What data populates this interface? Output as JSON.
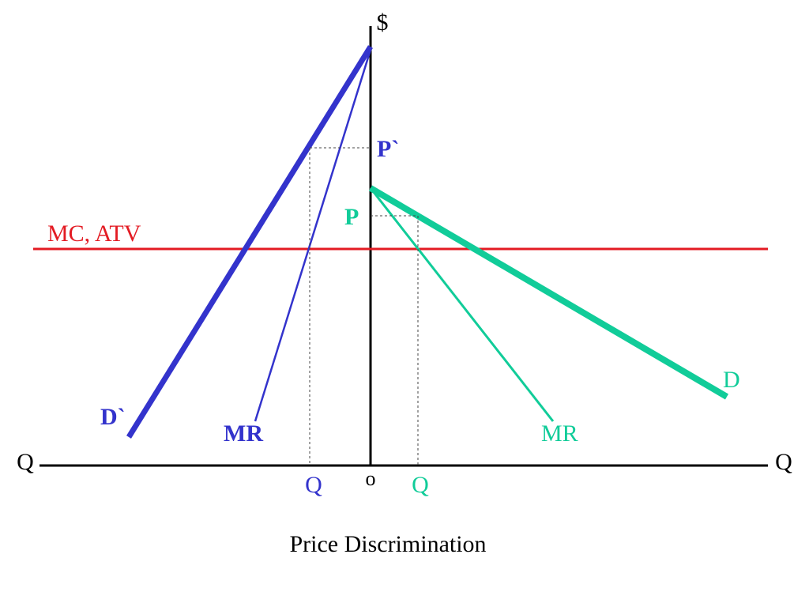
{
  "title": "Price Discrimination",
  "axes": {
    "y_label": "$",
    "x_label_left": "Q",
    "x_label_right": "Q",
    "origin_label": "o"
  },
  "marginal_cost": {
    "label": "MC, ATV",
    "color": "#e31b23"
  },
  "market_left": {
    "color": "#3333cc",
    "demand_label": "D`",
    "mr_label": "MR",
    "price_label": "P`",
    "quantity_label": "Q"
  },
  "market_right": {
    "color": "#11cc99",
    "demand_label": "D",
    "mr_label": "MR",
    "price_label": "P",
    "quantity_label": "Q"
  }
}
